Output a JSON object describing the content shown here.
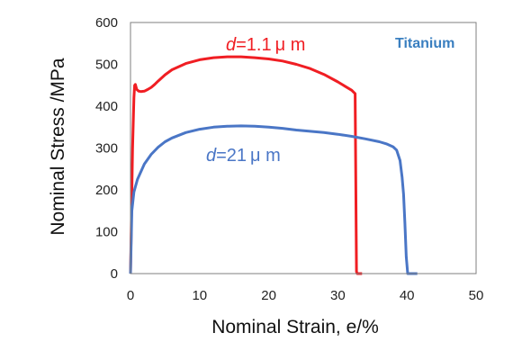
{
  "chart_data": {
    "type": "line",
    "title": "",
    "xlabel": "Nominal Strain, e/%",
    "ylabel": "Nominal Stress /MPa",
    "xlim": [
      0,
      50
    ],
    "ylim": [
      0,
      600
    ],
    "x_ticks": [
      0,
      10,
      20,
      30,
      40,
      50
    ],
    "y_ticks": [
      0,
      100,
      200,
      300,
      400,
      500,
      600
    ],
    "grid": false,
    "annotation": {
      "text": "Titanium",
      "color": "#3a7fc0"
    },
    "series": [
      {
        "label_italic": "d",
        "label_rest": "=1.1 μ m",
        "color": "#f01e23",
        "x": [
          0,
          0.3,
          0.5,
          0.6,
          0.7,
          0.9,
          1.2,
          1.5,
          2,
          2.5,
          3,
          3.5,
          4,
          5,
          6,
          8,
          10,
          12,
          14,
          16,
          18,
          20,
          22,
          24,
          26,
          28,
          30,
          31,
          32,
          32.5,
          32.6,
          32.7,
          32.8,
          33.5
        ],
        "y": [
          0,
          300,
          420,
          450,
          452,
          440,
          436,
          435,
          436,
          440,
          445,
          452,
          460,
          475,
          487,
          502,
          511,
          516,
          518,
          518,
          516,
          513,
          508,
          500,
          490,
          476,
          458,
          448,
          438,
          430,
          200,
          5,
          0,
          0
        ]
      },
      {
        "label_italic": "d",
        "label_rest": "=21 μ m",
        "color": "#4a76c6",
        "x": [
          0,
          0.2,
          0.5,
          1,
          2,
          3,
          4,
          5,
          6,
          8,
          10,
          12,
          14,
          16,
          18,
          20,
          22,
          24,
          26,
          28,
          30,
          32,
          34,
          36,
          37,
          38,
          38.5,
          39,
          39.3,
          39.5,
          39.7,
          39.9,
          40.1,
          41.5
        ],
        "y": [
          0,
          150,
          195,
          225,
          262,
          285,
          302,
          315,
          324,
          337,
          345,
          350,
          352,
          353,
          352,
          350,
          347,
          343,
          340,
          337,
          333,
          328,
          322,
          315,
          310,
          303,
          295,
          270,
          230,
          190,
          120,
          40,
          0,
          0
        ]
      }
    ]
  }
}
